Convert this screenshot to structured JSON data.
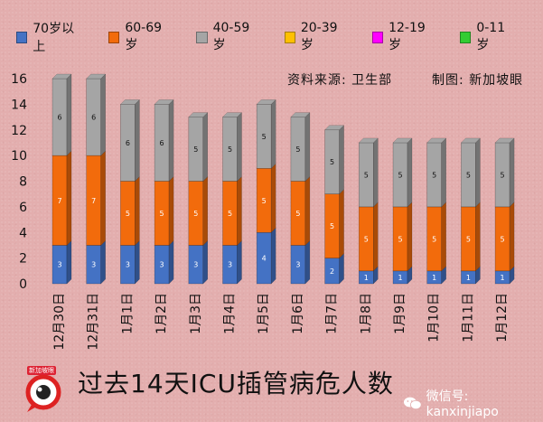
{
  "legend": [
    {
      "label": "70岁以上",
      "color": "#4472c4"
    },
    {
      "label": "60-69岁",
      "color": "#f26b0c"
    },
    {
      "label": "40-59岁",
      "color": "#a5a5a5"
    },
    {
      "label": "20-39岁",
      "color": "#ffc000"
    },
    {
      "label": "12-19岁",
      "color": "#ff00ff"
    },
    {
      "label": "0-11岁",
      "color": "#33cc33"
    }
  ],
  "source_text": "资料来源:  卫生部",
  "credit_text": "制图:  新加坡眼",
  "title": "过去14天ICU插管病危人数",
  "wechat_text": "微信号: kanxinjiapo",
  "logo_text": "新加坡眼",
  "chart_data": {
    "type": "bar",
    "stacked": true,
    "three_d": true,
    "categories": [
      "12月30日",
      "12月31日",
      "1月1日",
      "1月2日",
      "1月3日",
      "1月4日",
      "1月5日",
      "1月6日",
      "1月7日",
      "1月8日",
      "1月9日",
      "1月10日",
      "1月11日",
      "1月12日"
    ],
    "series": [
      {
        "name": "70岁以上",
        "color": "#4472c4",
        "values": [
          3,
          3,
          3,
          3,
          3,
          3,
          4,
          3,
          2,
          1,
          1,
          1,
          1,
          1
        ]
      },
      {
        "name": "60-69岁",
        "color": "#f26b0c",
        "values": [
          7,
          7,
          5,
          5,
          5,
          5,
          5,
          5,
          5,
          5,
          5,
          5,
          5,
          5
        ]
      },
      {
        "name": "40-59岁",
        "color": "#a5a5a5",
        "values": [
          6,
          6,
          6,
          6,
          5,
          5,
          5,
          5,
          5,
          5,
          5,
          5,
          5,
          5
        ]
      },
      {
        "name": "20-39岁",
        "color": "#ffc000",
        "values": [
          0,
          0,
          0,
          0,
          0,
          0,
          0,
          0,
          0,
          0,
          0,
          0,
          0,
          0
        ]
      },
      {
        "name": "12-19岁",
        "color": "#ff00ff",
        "values": [
          0,
          0,
          0,
          0,
          0,
          0,
          0,
          0,
          0,
          0,
          0,
          0,
          0,
          0
        ]
      },
      {
        "name": "0-11岁",
        "color": "#33cc33",
        "values": [
          0,
          0,
          0,
          0,
          0,
          0,
          0,
          0,
          0,
          0,
          0,
          0,
          0,
          0
        ]
      }
    ],
    "ylim": [
      0,
      16
    ],
    "yticks": [
      0,
      2,
      4,
      6,
      8,
      10,
      12,
      14,
      16
    ],
    "grid": false,
    "legend_position": "top"
  }
}
